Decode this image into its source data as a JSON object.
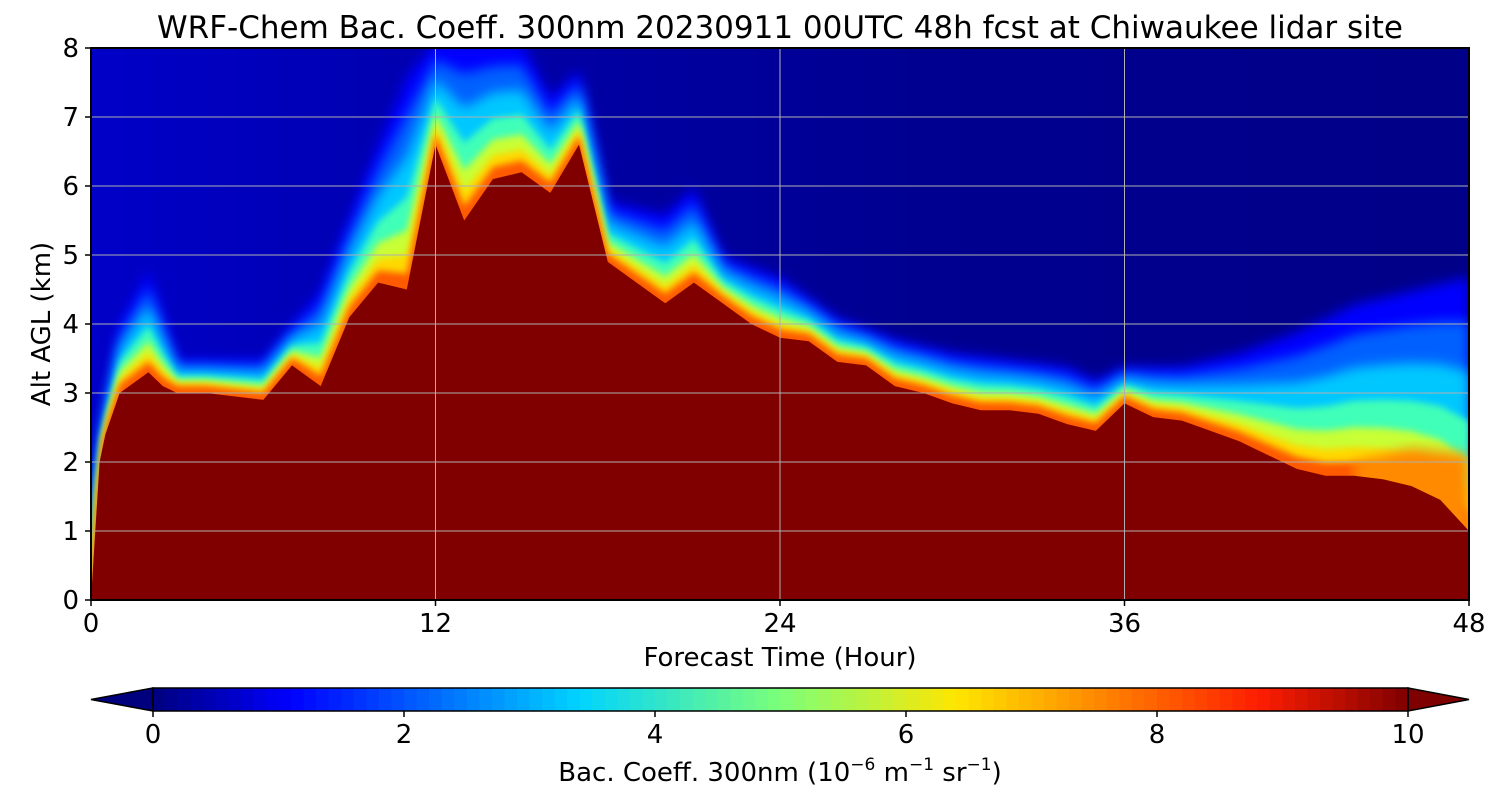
{
  "chart_data": {
    "type": "heatmap",
    "subtype": "filled-contour curtain plot",
    "title": "WRF-Chem Bac. Coeff. 300nm  20230911 00UTC 48h fcst at Chiwaukee lidar site",
    "xlabel": "Forecast Time (Hour)",
    "ylabel": "Alt AGL (km)",
    "xlim": [
      0,
      48
    ],
    "ylim": [
      0,
      8
    ],
    "xticks": [
      0,
      12,
      24,
      36,
      48
    ],
    "yticks": [
      0,
      1,
      2,
      3,
      4,
      5,
      6,
      7,
      8
    ],
    "grid": true,
    "colorbar": {
      "orientation": "horizontal",
      "placement": "bottom",
      "colormap": "jet",
      "range": [
        0,
        10
      ],
      "ticks": [
        0,
        2,
        4,
        6,
        8,
        10
      ],
      "extend": "both",
      "label_main": "Bac. Coeff. 300nm  (10",
      "label_exp1": "−6",
      "label_mid1": " m",
      "label_exp2": "−1",
      "label_mid2": " sr",
      "label_exp3": "−1",
      "label_end": ")"
    },
    "saturated_layer_top_km": {
      "description": "approximate altitude up to which backscatter ≥ 10 (dark red)",
      "x": [
        0,
        0.3,
        0.5,
        1,
        2,
        2.5,
        3,
        4,
        5,
        6,
        7,
        8,
        9,
        10,
        11,
        12,
        13,
        14,
        15,
        16,
        17,
        18,
        19,
        20,
        21,
        22,
        23,
        24,
        25,
        26,
        27,
        28,
        29,
        30,
        31,
        32,
        33,
        34,
        35,
        36,
        37,
        38,
        39,
        40,
        41,
        42,
        43,
        44,
        45,
        46,
        47,
        48
      ],
      "y": [
        0,
        2.0,
        2.4,
        3.0,
        3.3,
        3.1,
        3.0,
        3.0,
        2.95,
        2.9,
        3.4,
        3.1,
        4.1,
        4.6,
        4.5,
        6.6,
        5.5,
        6.1,
        6.2,
        5.9,
        6.6,
        4.9,
        4.6,
        4.3,
        4.6,
        4.3,
        4.0,
        3.8,
        3.75,
        3.45,
        3.4,
        3.1,
        3.0,
        2.85,
        2.75,
        2.75,
        2.7,
        2.55,
        2.45,
        2.85,
        2.65,
        2.6,
        2.45,
        2.3,
        2.1,
        1.9,
        1.8,
        1.8,
        1.75,
        1.65,
        1.45,
        1.0
      ]
    },
    "aerosol_plume_top_km": {
      "description": "approximate top of elevated backscatter (value ≈ 2)",
      "x": [
        0,
        1,
        2,
        3,
        6,
        8,
        10,
        11,
        12,
        13,
        14,
        15,
        16,
        17,
        18,
        20,
        21,
        22,
        24,
        26,
        28,
        30,
        32,
        34,
        35,
        36,
        38,
        40,
        42,
        44,
        46,
        48
      ],
      "y": [
        1.5,
        3.9,
        4.7,
        3.4,
        3.4,
        4.4,
        6.5,
        7.5,
        8.0,
        8.0,
        8.0,
        8.0,
        7.2,
        7.6,
        5.7,
        5.5,
        5.9,
        4.9,
        4.6,
        4.0,
        3.7,
        3.5,
        3.4,
        3.3,
        3.1,
        3.3,
        3.3,
        3.5,
        3.8,
        4.2,
        4.4,
        4.6
      ]
    }
  }
}
